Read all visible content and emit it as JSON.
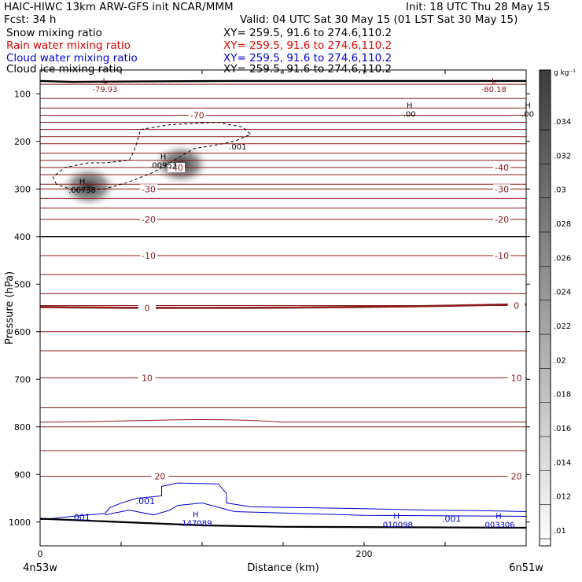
{
  "header": {
    "title_line1": "HAIC-HIWC 13km ARW-GFS init   NCAR/MMM",
    "init": "Init: 18 UTC Thu 28 May 15",
    "fcst": "Fcst:   34 h",
    "valid": "Valid: 04 UTC Sat 30 May 15 (01 LST Sat 30 May 15)",
    "fields": [
      {
        "name": "Snow mixing ratio",
        "xy": "XY= 259.5, 91.6 to 274.6,110.2",
        "color": "#000000"
      },
      {
        "name": "Rain water mixing ratio",
        "xy": "XY= 259.5, 91.6 to 274.6,110.2",
        "color": "#e00000"
      },
      {
        "name": "Cloud water mixing ratio",
        "xy": "XY= 259.5, 91.6 to 274.6,110.2",
        "color": "#0000cc"
      },
      {
        "name": "Cloud ice mixing ratio",
        "xy": "XY= 259.5, 91.6 to 274.6,110.2",
        "color": "#000000"
      }
    ]
  },
  "chart_data": {
    "type": "contour-cross-section",
    "xlabel": "Distance (km)",
    "ylabel": "Pressure (hPa)",
    "xlim": [
      0,
      300
    ],
    "ylim": [
      1050,
      50
    ],
    "x_ticks": [
      0,
      200
    ],
    "y_ticks": [
      100,
      200,
      300,
      400,
      500,
      600,
      700,
      800,
      900,
      1000
    ],
    "x_end_labels": {
      "left": "4n53w",
      "right": "6n51w"
    },
    "colorbar": {
      "unit": "g kg⁻¹",
      "ticks": [
        ".01",
        ".012",
        ".014",
        ".016",
        ".018",
        ".02",
        ".022",
        ".024",
        ".026",
        ".028",
        ".03",
        ".032",
        ".034"
      ]
    },
    "temperature_contour_labels": [
      {
        "value": "-70",
        "x": 97,
        "p": 145
      },
      {
        "value": "-40",
        "x": 84,
        "p": 255
      },
      {
        "value": "-40",
        "x": 285,
        "p": 255
      },
      {
        "value": "-30",
        "x": 67,
        "p": 300
      },
      {
        "value": "-30",
        "x": 285,
        "p": 300
      },
      {
        "value": "-20",
        "x": 67,
        "p": 364
      },
      {
        "value": "-20",
        "x": 285,
        "p": 364
      },
      {
        "value": "-10",
        "x": 67,
        "p": 440
      },
      {
        "value": "-10",
        "x": 285,
        "p": 440
      },
      {
        "value": "0",
        "x": 66,
        "p": 550
      },
      {
        "value": "0",
        "x": 294,
        "p": 545
      },
      {
        "value": "10",
        "x": 66,
        "p": 697
      },
      {
        "value": "10",
        "x": 294,
        "p": 697
      },
      {
        "value": "20",
        "x": 74,
        "p": 904
      },
      {
        "value": "20",
        "x": 294,
        "p": 904
      }
    ],
    "extrema_labels": [
      {
        "marker": "L",
        "value": "-79.93",
        "x": 40,
        "p": 78,
        "color": "#8b1a1a"
      },
      {
        "marker": "L",
        "value": "-80.18",
        "x": 280,
        "p": 78,
        "color": "#8b1a1a"
      },
      {
        "marker": "H",
        "value": ".00",
        "x": 228,
        "p": 130,
        "color": "#000000"
      },
      {
        "marker": "H",
        "value": ".00",
        "x": 301,
        "p": 130,
        "color": "#000000"
      },
      {
        "marker": "H",
        "value": ".00953",
        "x": 76,
        "p": 238,
        "color": "#000000"
      },
      {
        "marker": "H",
        "value": ".00738",
        "x": 26,
        "p": 290,
        "color": "#000000"
      },
      {
        "marker": "H",
        "value": ".147089",
        "x": 96,
        "p": 990,
        "color": "#0000cc"
      },
      {
        "marker": "H",
        "value": ".010098",
        "x": 220,
        "p": 993,
        "color": "#0000cc"
      },
      {
        "marker": "H",
        "value": ".003306",
        "x": 283,
        "p": 993,
        "color": "#0000cc"
      }
    ],
    "cloud_water_labels": [
      {
        "value": ".001",
        "x": 25,
        "p": 990
      },
      {
        "value": ".001",
        "x": 65,
        "p": 956
      },
      {
        "value": ".001",
        "x": 254,
        "p": 993
      }
    ],
    "snow_labels": [
      {
        "value": ".001",
        "x": 122,
        "p": 210
      }
    ],
    "snow_maxima": [
      {
        "x": 30,
        "p": 295,
        "value": 0.034
      },
      {
        "x": 87,
        "p": 248,
        "value": 0.034
      }
    ]
  }
}
